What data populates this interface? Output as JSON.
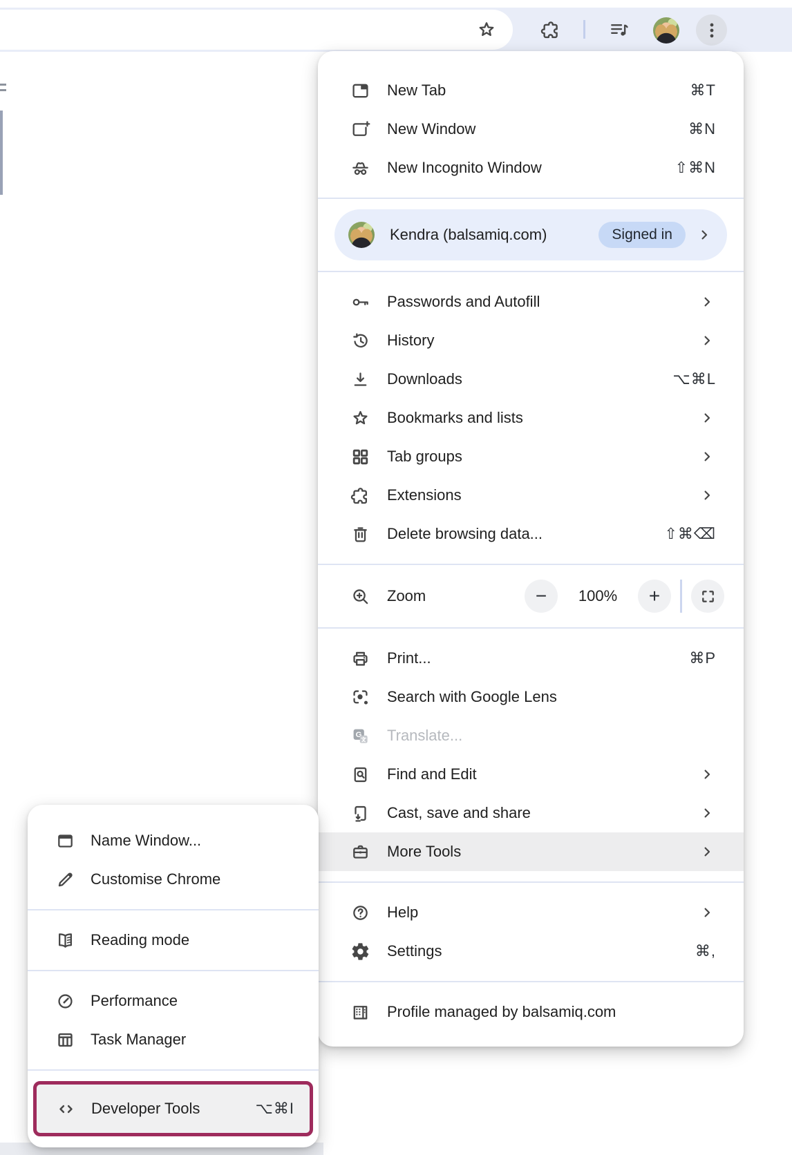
{
  "browser_bar": {
    "icons": {
      "bookmark_star": "bookmark-star-icon",
      "extensions": "extensions-icon",
      "media_controls": "media-controls-icon",
      "profile_avatar": "avatar",
      "menu_button": "kebab-menu-icon"
    }
  },
  "colors": {
    "toolbar_bg": "#e9edf8",
    "menu_bg": "#ffffff",
    "hover_row_bg": "#ededee",
    "profile_row_bg": "#e8eefb",
    "signed_in_pill_bg": "#c7d9f6",
    "divider": "#dee4f3",
    "annotation_border": "#9e2b5c",
    "text": "#1f1f1f",
    "disabled_text": "#b6b9be"
  },
  "main_menu": {
    "sections": [
      {
        "items": [
          {
            "id": "new-tab",
            "icon": "new-tab-icon",
            "label": "New Tab",
            "shortcut": "⌘T"
          },
          {
            "id": "new-window",
            "icon": "new-window-icon",
            "label": "New Window",
            "shortcut": "⌘N"
          },
          {
            "id": "new-incognito-window",
            "icon": "incognito-icon",
            "label": "New Incognito Window",
            "shortcut": "⇧⌘N"
          }
        ]
      },
      {
        "items": [
          {
            "id": "profile",
            "type": "profile",
            "icon": "avatar",
            "label": "Kendra (balsamiq.com)",
            "badge": "Signed in",
            "chevron": true
          }
        ]
      },
      {
        "items": [
          {
            "id": "passwords-and-autofill",
            "icon": "key-icon",
            "label": "Passwords and Autofill",
            "chevron": true
          },
          {
            "id": "history",
            "icon": "history-icon",
            "label": "History",
            "chevron": true
          },
          {
            "id": "downloads",
            "icon": "download-icon",
            "label": "Downloads",
            "shortcut": "⌥⌘L"
          },
          {
            "id": "bookmarks-and-lists",
            "icon": "bookmark-star-icon",
            "label": "Bookmarks and lists",
            "chevron": true
          },
          {
            "id": "tab-groups",
            "icon": "tab-groups-icon",
            "label": "Tab groups",
            "chevron": true
          },
          {
            "id": "extensions",
            "icon": "extensions-icon",
            "label": "Extensions",
            "chevron": true
          },
          {
            "id": "delete-browsing-data",
            "icon": "trash-icon",
            "label": "Delete browsing data...",
            "shortcut": "⇧⌘⌫"
          }
        ]
      },
      {
        "items": [
          {
            "id": "zoom",
            "type": "zoom",
            "icon": "zoom-icon",
            "label": "Zoom",
            "zoom_level": "100%",
            "minus_label": "−",
            "plus_label": "+",
            "fullscreen_icon": "fullscreen-icon"
          }
        ]
      },
      {
        "items": [
          {
            "id": "print",
            "icon": "print-icon",
            "label": "Print...",
            "shortcut": "⌘P"
          },
          {
            "id": "search-with-google-lens",
            "icon": "lens-icon",
            "label": "Search with Google Lens"
          },
          {
            "id": "translate",
            "icon": "translate-icon",
            "label": "Translate...",
            "disabled": true
          },
          {
            "id": "find-and-edit",
            "icon": "find-icon",
            "label": "Find and Edit",
            "chevron": true
          },
          {
            "id": "cast-save-share",
            "icon": "cast-icon",
            "label": "Cast, save and share",
            "chevron": true
          },
          {
            "id": "more-tools",
            "icon": "briefcase-icon",
            "label": "More Tools",
            "chevron": true,
            "highlighted": true
          }
        ]
      },
      {
        "items": [
          {
            "id": "help",
            "icon": "help-icon",
            "label": "Help",
            "chevron": true
          },
          {
            "id": "settings",
            "icon": "gear-icon",
            "label": "Settings",
            "shortcut": "⌘,"
          }
        ]
      },
      {
        "items": [
          {
            "id": "profile-managed",
            "icon": "building-icon",
            "label": "Profile managed by balsamiq.com"
          }
        ]
      }
    ]
  },
  "submenu": {
    "sections": [
      {
        "items": [
          {
            "id": "name-window",
            "icon": "window-icon",
            "label": "Name Window..."
          },
          {
            "id": "customise-chrome",
            "icon": "pencil-icon",
            "label": "Customise Chrome"
          }
        ]
      },
      {
        "items": [
          {
            "id": "reading-mode",
            "icon": "reading-mode-icon",
            "label": "Reading mode"
          }
        ]
      },
      {
        "items": [
          {
            "id": "performance",
            "icon": "performance-icon",
            "label": "Performance"
          },
          {
            "id": "task-manager",
            "icon": "task-manager-icon",
            "label": "Task Manager"
          }
        ]
      },
      {
        "items": [
          {
            "id": "developer-tools",
            "icon": "code-icon",
            "label": "Developer Tools",
            "shortcut": "⌥⌘I",
            "annotated": true
          }
        ]
      }
    ]
  }
}
